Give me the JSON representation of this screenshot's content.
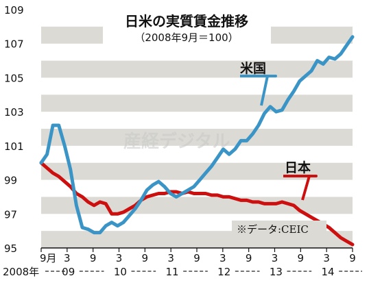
{
  "chart_data": {
    "type": "line",
    "title": "日米の実質賃金推移",
    "subtitle": "（2008年9月＝100）",
    "source": "※データ:CEIC",
    "watermark": "産経デジタル",
    "ylim": [
      95,
      109
    ],
    "yticks": [
      "109",
      "107",
      "105",
      "103",
      "101",
      "99",
      "97",
      "95"
    ],
    "x_ticks_month": [
      "9月",
      "3",
      "9",
      "3",
      "9",
      "3",
      "9",
      "3",
      "9",
      "3",
      "9",
      "3",
      "9"
    ],
    "x_ticks_year": [
      "2008年",
      "09",
      "10",
      "11",
      "12",
      "13",
      "14"
    ],
    "grid": "alternating horizontal bands",
    "colors": {
      "us": "#3a95c6",
      "jp": "#cc1010",
      "band": "#dcdad5"
    },
    "series": [
      {
        "name": "米国",
        "key": "us",
        "values": [
          100.0,
          100.5,
          102.2,
          102.2,
          101.0,
          99.6,
          97.5,
          96.2,
          96.1,
          95.9,
          95.9,
          96.3,
          96.5,
          96.3,
          96.5,
          96.9,
          97.3,
          97.8,
          98.4,
          98.7,
          98.9,
          98.6,
          98.2,
          98.0,
          98.2,
          98.4,
          98.6,
          99.0,
          99.4,
          99.8,
          100.3,
          100.8,
          100.5,
          100.8,
          101.3,
          101.3,
          101.7,
          102.2,
          102.9,
          103.3,
          103.0,
          103.1,
          103.7,
          104.2,
          104.8,
          105.1,
          105.4,
          106.0,
          105.8,
          106.2,
          106.1,
          106.4,
          106.9,
          107.4
        ]
      },
      {
        "name": "日本",
        "key": "jp",
        "values": [
          100.0,
          99.7,
          99.4,
          99.2,
          98.9,
          98.6,
          98.2,
          98.0,
          97.7,
          97.5,
          97.7,
          97.6,
          97.0,
          97.0,
          97.1,
          97.3,
          97.5,
          97.8,
          98.0,
          98.1,
          98.2,
          98.2,
          98.3,
          98.3,
          98.2,
          98.3,
          98.2,
          98.2,
          98.2,
          98.1,
          98.1,
          98.0,
          98.0,
          97.9,
          97.8,
          97.8,
          97.7,
          97.7,
          97.6,
          97.6,
          97.6,
          97.7,
          97.6,
          97.5,
          97.2,
          97.0,
          96.8,
          96.6,
          96.4,
          96.2,
          95.9,
          95.6,
          95.4,
          95.2
        ]
      }
    ]
  }
}
